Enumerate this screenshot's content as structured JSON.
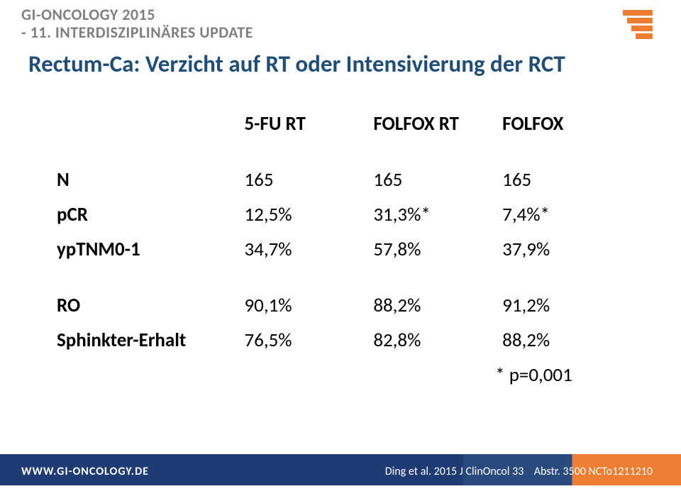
{
  "header": {
    "line1": "GI-ONCOLOGY 2015",
    "line2": "- 11. INTERDISZIPLINÄRES UPDATE",
    "text_color": "#7f7f7f",
    "logo_color": "#ed7d31"
  },
  "title": {
    "text": "Rectum-Ca: Verzicht auf RT oder Intensivierung der RCT",
    "color": "#1f4e79",
    "fontsize": 33
  },
  "table": {
    "columns": [
      "",
      "5-FU RT",
      "FOLFOX RT",
      "FOLFOX"
    ],
    "rows": [
      {
        "label": "N",
        "v1": "165",
        "v2": "165",
        "v3": "165"
      },
      {
        "label": "pCR",
        "v1": "12,5%",
        "v2": "31,3%*",
        "v3": "7,4%*"
      },
      {
        "label": "ypTNM0-1",
        "v1": "34,7%",
        "v2": "57,8%",
        "v3": "37,9%"
      },
      {
        "label": "RO",
        "v1": "90,1%",
        "v2": "88,2%",
        "v3": "91,2%"
      },
      {
        "label": "Sphinkter-Erhalt",
        "v1": "76,5%",
        "v2": "82,8%",
        "v3": "88,2%"
      }
    ],
    "note": "* p=0,001",
    "fontsize": 27,
    "text_color": "#000000"
  },
  "footer": {
    "left": "WWW.GI-ONCOLOGY.DE",
    "right_citation": "Ding et al. 2015  J ClinOncol 33",
    "right_tail": "Abstr. 3500 NCTo1211210",
    "band_colors": [
      "#1f3b73",
      "#2a4a7d",
      "#ed7d31"
    ],
    "text_color": "#ffffff"
  }
}
